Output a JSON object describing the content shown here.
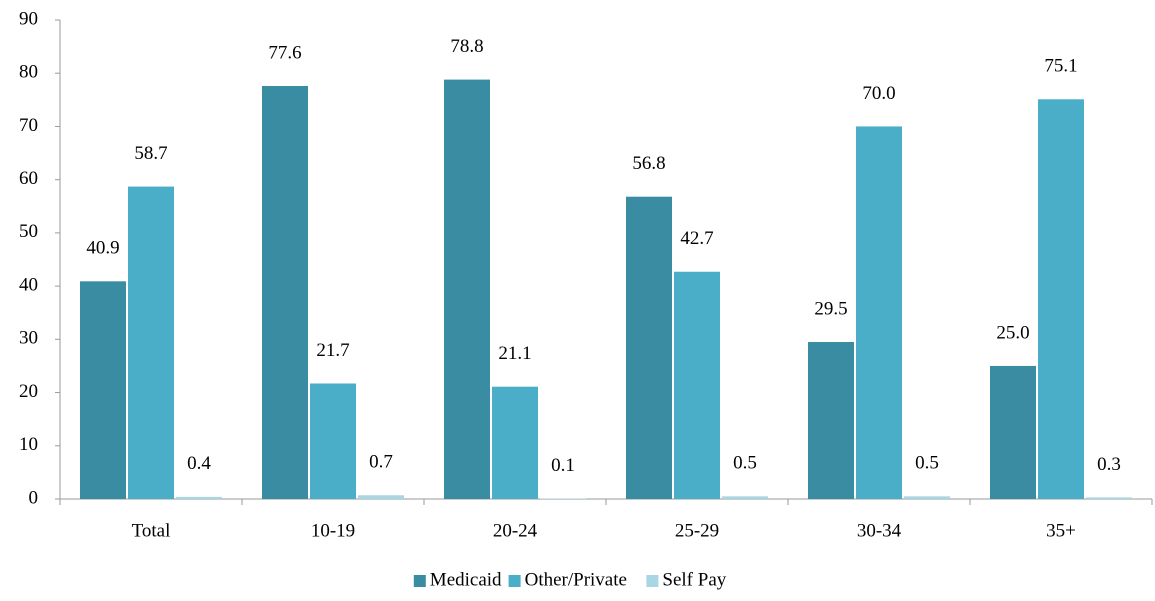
{
  "chart_data": {
    "type": "bar",
    "categories": [
      "Total",
      "10-19",
      "20-24",
      "25-29",
      "30-34",
      "35+"
    ],
    "series": [
      {
        "name": "Medicaid",
        "color": "#3a8ca3",
        "values": [
          40.9,
          77.6,
          78.8,
          56.8,
          29.5,
          25.0
        ],
        "value_labels": [
          "40.9",
          "77.6",
          "78.8",
          "56.8",
          "29.5",
          "25.0"
        ]
      },
      {
        "name": "Other/Private",
        "color": "#4aaec8",
        "values": [
          58.7,
          21.7,
          21.1,
          42.7,
          70.0,
          75.1
        ],
        "value_labels": [
          "58.7",
          "21.7",
          "21.1",
          "42.7",
          "70.0",
          "75.1"
        ]
      },
      {
        "name": "Self Pay",
        "color": "#a9d6e3",
        "values": [
          0.4,
          0.7,
          0.1,
          0.5,
          0.5,
          0.3
        ],
        "value_labels": [
          "0.4",
          "0.7",
          "0.1",
          "0.5",
          "0.5",
          "0.3"
        ]
      }
    ],
    "ylim": [
      0,
      90
    ],
    "yticks": [
      0,
      10,
      20,
      30,
      40,
      50,
      60,
      70,
      80,
      90
    ],
    "grid": false,
    "legend": "bottom"
  }
}
